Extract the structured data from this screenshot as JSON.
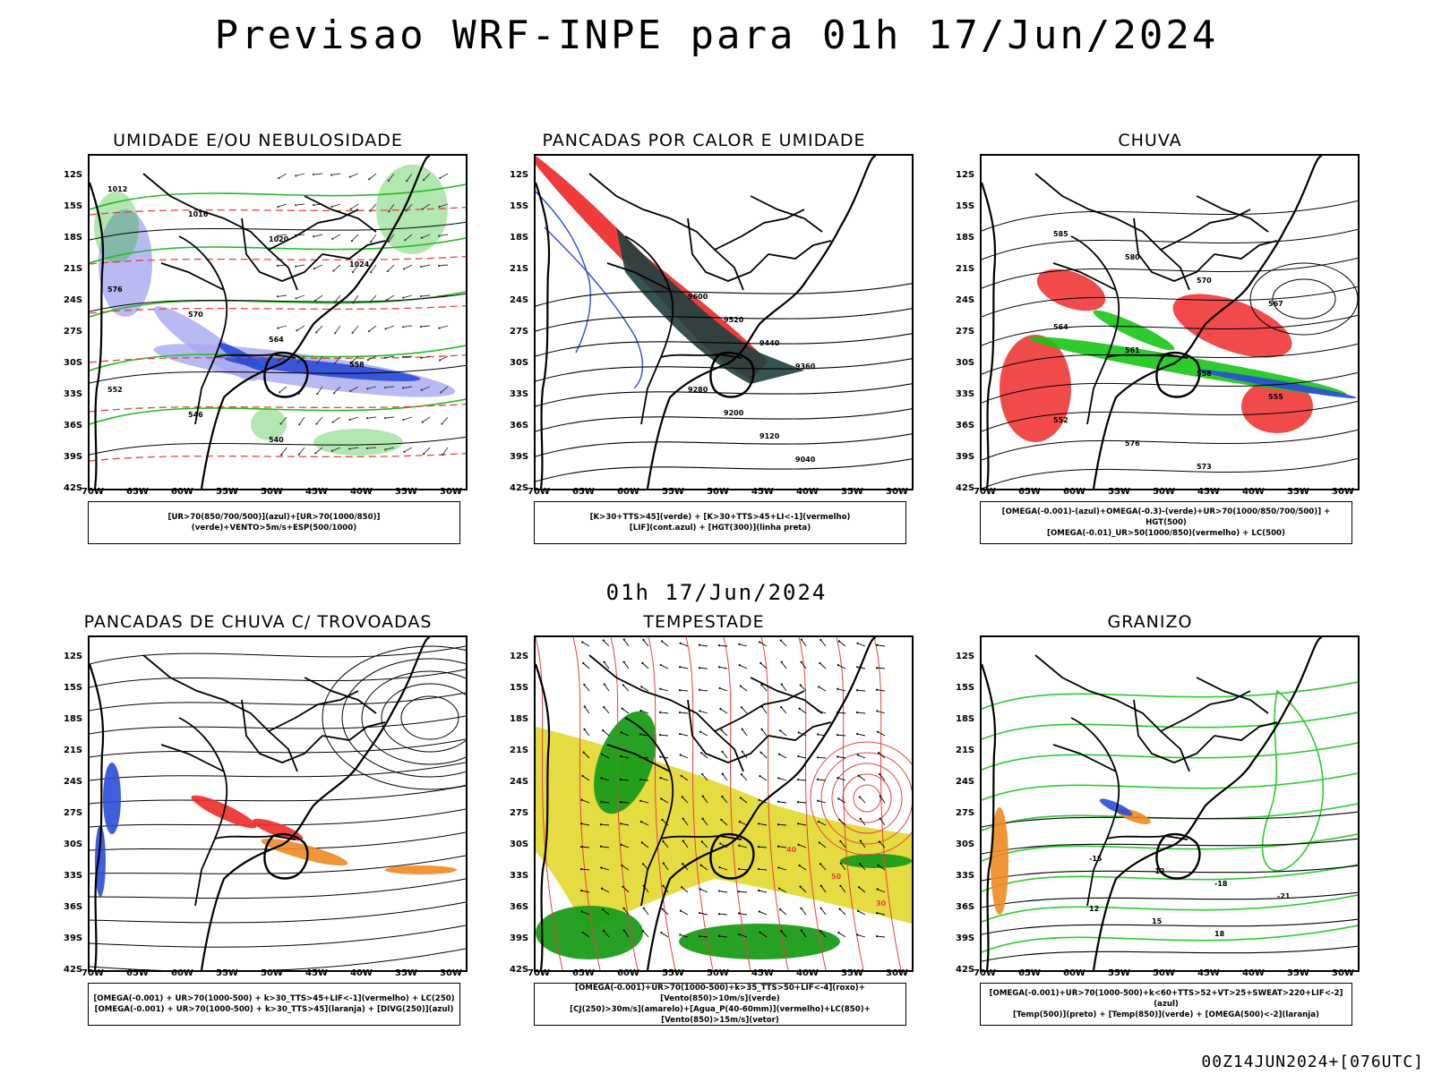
{
  "header": {
    "title": "Previsao WRF-INPE  para 01h 17/Jun/2024",
    "mid_date": "01h 17/Jun/2024",
    "run": "00Z14JUN2024+[076UTC]"
  },
  "axes": {
    "lat_labels": [
      "12S",
      "15S",
      "18S",
      "21S",
      "24S",
      "27S",
      "30S",
      "33S",
      "36S",
      "39S",
      "42S"
    ],
    "lon_labels": [
      "70W",
      "65W",
      "60W",
      "55W",
      "50W",
      "45W",
      "40W",
      "35W",
      "30W"
    ]
  },
  "colors": {
    "humidity_high": "#2b4bd8",
    "humidity_low": "#a8a8f0",
    "humidity_green": "#22bb22",
    "heat_shower": "#ef3b3b",
    "heat_dark": "#1f4040",
    "rain_green": "#17c417",
    "rain_red": "#ef2a2a",
    "thunder_orange": "#ee8a22",
    "storm_yellow": "#e2d82e",
    "storm_green": "#1a9c1a",
    "streamline_red": "#e84040",
    "hail_green": "#2ccc2c"
  },
  "panels": [
    {
      "title": "UMIDADE E/OU NEBULOSIDADE",
      "caption": [
        "[UR>70(850/700/500)](azul)+[UR>70(1000/850)](verde)+VENTO>5m/s+ESP(500/1000)"
      ],
      "labels": [
        "1012",
        "1016",
        "1020",
        "1024",
        "576",
        "570",
        "564",
        "558",
        "552",
        "546",
        "540"
      ]
    },
    {
      "title": "PANCADAS POR CALOR E UMIDADE",
      "caption": [
        "[K>30+TTS>45](verde) + [K>30+TTS>45+LI<-1](vermelho)",
        "[LIF](cont.azul) + [HGT(300)](linha preta)"
      ],
      "labels": [
        "9600",
        "9520",
        "9440",
        "9360",
        "9280",
        "9200",
        "9120",
        "9040"
      ]
    },
    {
      "title": "CHUVA",
      "caption": [
        "[OMEGA(-0.001)-(azul)+OMEGA(-0.3)-(verde)+UR>70(1000/850/700/500)] + HGT(500)",
        "[OMEGA(-0.01)_UR>50(1000/850)(vermelho) + LC(500)"
      ],
      "labels": [
        "585",
        "580",
        "570",
        "567",
        "564",
        "561",
        "558",
        "555",
        "552",
        "576",
        "573"
      ]
    },
    {
      "title": "PANCADAS DE CHUVA C/ TROVOADAS",
      "caption": [
        "[OMEGA(-0.001) + UR>70(1000-500) + k>30_TTS>45+LIF<-1](vermelho) + LC(250)",
        "[OMEGA(-0.001) + UR>70(1000-500) + k>30_TTS>45](laranja) + [DIVG(250)](azul)"
      ],
      "labels": []
    },
    {
      "title": "TEMPESTADE",
      "caption": [
        "[OMEGA(-0.001)+UR>70(1000-500)+k>35_TTS>50+LIF<-4](roxo)+[Vento(850)>10m/s](verde)",
        "[CJ(250)>30m/s](amarelo)+[Agua_P(40-60mm)](vermelho)+LC(850)+[Vento(850)>15m/s](vetor)"
      ],
      "labels": [
        "40",
        "50",
        "30"
      ]
    },
    {
      "title": "GRANIZO",
      "caption": [
        "[OMEGA(-0.001)+UR>70(1000-500)+k<60+TTS>52+VT>25+SWEAT>220+LIF<-2](azul)",
        "[Temp(500)](preto) + [Temp(850)](verde) + [OMEGA(500)<-2](laranja)"
      ],
      "labels": [
        "-15",
        "-12",
        "-18",
        "-21",
        "12",
        "15",
        "18"
      ]
    }
  ]
}
